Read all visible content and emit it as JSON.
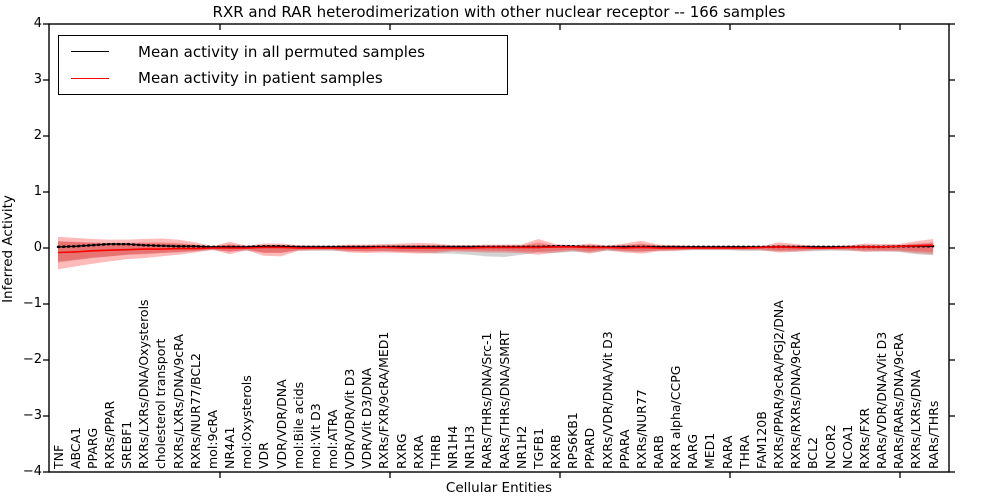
{
  "figure": {
    "title": "RXR and RAR heterodimerization with other nuclear receptor -- 166 samples",
    "xlabel": "Cellular Entities",
    "ylabel": "Inferred Activity",
    "legend": {
      "entries": [
        {
          "label": "Mean activity in all permuted samples",
          "color": "#000000"
        },
        {
          "label": "Mean activity in patient samples",
          "color": "#ff0000"
        }
      ]
    },
    "yticklabels": [
      "4",
      "3",
      "2",
      "1",
      "0",
      "−1",
      "−2",
      "−3",
      "−4"
    ]
  },
  "chart_data": {
    "type": "line",
    "title": "RXR and RAR heterodimerization with other nuclear receptor -- 166 samples",
    "xlabel": "Cellular Entities",
    "ylabel": "Inferred Activity",
    "ylim": [
      -4,
      4
    ],
    "yticks": [
      4,
      3,
      2,
      1,
      0,
      -1,
      -2,
      -3,
      -4
    ],
    "grid": false,
    "legend_position": "upper left",
    "categories": [
      "TNF",
      "ABCA1",
      "PPARG",
      "RXRs/PPAR",
      "SREBF1",
      "RXRs/LXRs/DNA/Oxysterols",
      "cholesterol transport",
      "RXRs/LXRs/DNA/9cRA",
      "RXRs/NUR77/BCL2",
      "mol:9cRA",
      "NR4A1",
      "mol:Oxysterols",
      "VDR",
      "VDR/VDR/DNA",
      "mol:Bile acids",
      "mol:Vit D3",
      "mol:ATRA",
      "VDR/VDR/Vit D3",
      "VDR/Vit D3/DNA",
      "RXRs/FXR/9cRA/MED1",
      "RXRG",
      "RXRA",
      "THRB",
      "NR1H4",
      "NR1H3",
      "RARs/THRs/DNA/Src-1",
      "RARs/THRs/DNA/SMRT",
      "NR1H2",
      "TGFB1",
      "RXRB",
      "RPS6KB1",
      "PPARD",
      "RXRs/VDR/DNA/Vit D3",
      "PPARA",
      "RXRs/NUR77",
      "RARB",
      "RXR alpha/CCPG",
      "RARG",
      "MED1",
      "RARA",
      "THRA",
      "FAM120B",
      "RXRs/PPAR/9cRA/PGJ2/DNA",
      "RXRs/RXRs/DNA/9cRA",
      "BCL2",
      "NCOR2",
      "NCOA1",
      "RXRs/FXR",
      "RARs/VDR/DNA/Vit D3",
      "RARs/RARs/DNA/9cRA",
      "RXRs/LXRs/DNA",
      "RARs/THRs"
    ],
    "series": [
      {
        "name": "Mean activity in all permuted samples",
        "color": "#000000",
        "style": "line+dots",
        "values": [
          0.02,
          0.03,
          0.05,
          0.07,
          0.07,
          0.05,
          0.04,
          0.03,
          0.03,
          0.02,
          0.02,
          0.02,
          0.03,
          0.03,
          0.02,
          0.02,
          0.02,
          0.02,
          0.02,
          0.02,
          0.02,
          0.02,
          0.02,
          0.02,
          0.02,
          0.02,
          0.02,
          0.02,
          0.02,
          0.03,
          0.03,
          0.02,
          0.02,
          0.02,
          0.02,
          0.02,
          0.02,
          0.02,
          0.02,
          0.02,
          0.02,
          0.02,
          0.02,
          0.02,
          0.02,
          0.02,
          0.02,
          0.02,
          0.02,
          0.03,
          0.03,
          0.03
        ]
      },
      {
        "name": "Mean activity in patient samples",
        "color": "#ff0000",
        "style": "line",
        "values": [
          -0.08,
          -0.07,
          -0.05,
          -0.04,
          -0.03,
          -0.02,
          -0.02,
          -0.01,
          -0.01,
          0,
          0,
          0,
          0.01,
          0.01,
          0,
          0,
          0,
          0,
          0,
          0.01,
          0,
          0,
          0,
          0,
          0,
          0.01,
          0.01,
          0.01,
          0.01,
          0.02,
          0.02,
          0.01,
          0.01,
          0,
          0.01,
          0,
          0,
          0,
          0,
          0,
          0,
          0.01,
          0.02,
          0.01,
          0,
          0,
          0.01,
          0.02,
          0.02,
          0.03,
          0.04,
          0.05
        ]
      }
    ],
    "bands": [
      {
        "name": "permuted-samples-spread",
        "color": "#808080",
        "alpha": 0.35,
        "upper": [
          0.12,
          0.1,
          0.09,
          0.09,
          0.08,
          0.08,
          0.08,
          0.07,
          0.05,
          0.03,
          0.05,
          0.04,
          0.05,
          0.05,
          0.04,
          0.04,
          0.04,
          0.04,
          0.04,
          0.05,
          0.05,
          0.05,
          0.05,
          0.05,
          0.05,
          0.05,
          0.05,
          0.05,
          0.06,
          0.05,
          0.04,
          0.05,
          0.04,
          0.05,
          0.06,
          0.04,
          0.04,
          0.03,
          0.03,
          0.03,
          0.03,
          0.03,
          0.05,
          0.04,
          0.04,
          0.03,
          0.04,
          0.05,
          0.05,
          0.05,
          0.08,
          0.08
        ],
        "lower": [
          -0.26,
          -0.22,
          -0.18,
          -0.15,
          -0.12,
          -0.1,
          -0.09,
          -0.08,
          -0.06,
          -0.04,
          -0.06,
          -0.05,
          -0.08,
          -0.08,
          -0.05,
          -0.05,
          -0.05,
          -0.06,
          -0.06,
          -0.06,
          -0.07,
          -0.08,
          -0.1,
          -0.1,
          -0.12,
          -0.15,
          -0.16,
          -0.12,
          -0.08,
          -0.09,
          -0.07,
          -0.08,
          -0.05,
          -0.06,
          -0.07,
          -0.05,
          -0.05,
          -0.04,
          -0.04,
          -0.04,
          -0.05,
          -0.05,
          -0.06,
          -0.06,
          -0.06,
          -0.05,
          -0.05,
          -0.06,
          -0.06,
          -0.07,
          -0.11,
          -0.13
        ]
      },
      {
        "name": "patient-samples-spread-outer",
        "color": "#ff0000",
        "alpha": 0.27,
        "upper": [
          0.2,
          0.18,
          0.16,
          0.15,
          0.15,
          0.16,
          0.17,
          0.15,
          0.1,
          0.03,
          0.11,
          0.04,
          0.08,
          0.08,
          0.05,
          0.04,
          0.04,
          0.06,
          0.06,
          0.07,
          0.08,
          0.09,
          0.08,
          0.05,
          0.05,
          0.06,
          0.06,
          0.06,
          0.16,
          0.07,
          0.05,
          0.08,
          0.04,
          0.08,
          0.13,
          0.06,
          0.05,
          0.03,
          0.03,
          0.03,
          0.03,
          0.03,
          0.1,
          0.07,
          0.04,
          0.03,
          0.04,
          0.08,
          0.07,
          0.07,
          0.12,
          0.16
        ],
        "lower": [
          -0.38,
          -0.33,
          -0.28,
          -0.24,
          -0.2,
          -0.18,
          -0.15,
          -0.12,
          -0.08,
          -0.03,
          -0.11,
          -0.04,
          -0.14,
          -0.15,
          -0.05,
          -0.04,
          -0.04,
          -0.08,
          -0.09,
          -0.08,
          -0.09,
          -0.1,
          -0.09,
          -0.06,
          -0.07,
          -0.08,
          -0.08,
          -0.09,
          -0.12,
          -0.08,
          -0.05,
          -0.1,
          -0.04,
          -0.08,
          -0.1,
          -0.06,
          -0.05,
          -0.03,
          -0.03,
          -0.03,
          -0.04,
          -0.04,
          -0.08,
          -0.07,
          -0.04,
          -0.03,
          -0.04,
          -0.07,
          -0.06,
          -0.06,
          -0.09,
          -0.11
        ]
      },
      {
        "name": "patient-samples-spread-inner",
        "color": "#ff0000",
        "alpha": 0.25,
        "upper": [
          0.12,
          0.11,
          0.1,
          0.09,
          0.09,
          0.1,
          0.1,
          0.09,
          0.06,
          0.02,
          0.07,
          0.02,
          0.05,
          0.05,
          0.03,
          0.02,
          0.02,
          0.04,
          0.04,
          0.04,
          0.05,
          0.05,
          0.05,
          0.03,
          0.03,
          0.04,
          0.04,
          0.04,
          0.1,
          0.04,
          0.03,
          0.05,
          0.02,
          0.05,
          0.08,
          0.04,
          0.03,
          0.02,
          0.02,
          0.02,
          0.02,
          0.02,
          0.06,
          0.04,
          0.02,
          0.02,
          0.02,
          0.05,
          0.04,
          0.04,
          0.07,
          0.1
        ],
        "lower": [
          -0.24,
          -0.21,
          -0.17,
          -0.15,
          -0.12,
          -0.11,
          -0.09,
          -0.07,
          -0.05,
          -0.02,
          -0.07,
          -0.02,
          -0.09,
          -0.09,
          -0.03,
          -0.02,
          -0.02,
          -0.05,
          -0.06,
          -0.05,
          -0.06,
          -0.06,
          -0.06,
          -0.04,
          -0.04,
          -0.05,
          -0.05,
          -0.06,
          -0.07,
          -0.05,
          -0.03,
          -0.06,
          -0.02,
          -0.05,
          -0.06,
          -0.04,
          -0.03,
          -0.02,
          -0.02,
          -0.02,
          -0.02,
          -0.02,
          -0.05,
          -0.04,
          -0.02,
          -0.02,
          -0.02,
          -0.04,
          -0.04,
          -0.04,
          -0.06,
          -0.07
        ]
      }
    ]
  }
}
